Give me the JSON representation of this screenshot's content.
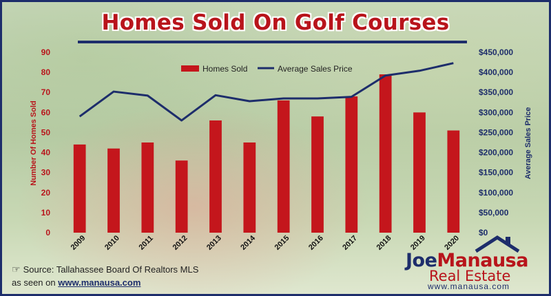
{
  "title": "Homes Sold On Golf Courses",
  "colors": {
    "bars": "#c4161c",
    "line": "#1d2d6b",
    "left_axis": "#b8141b",
    "right_axis": "#1d2d6b"
  },
  "chart_data": {
    "type": "bar",
    "title": "Homes Sold On Golf Courses",
    "categories": [
      "2009",
      "2010",
      "2011",
      "2012",
      "2013",
      "2014",
      "2015",
      "2016",
      "2017",
      "2018",
      "2019",
      "2020"
    ],
    "series": [
      {
        "name": "Homes Sold",
        "kind": "bar",
        "axis": "left",
        "values": [
          44,
          42,
          45,
          36,
          56,
          45,
          66,
          58,
          68,
          79,
          60,
          51
        ]
      },
      {
        "name": "Average Sales Price",
        "kind": "line",
        "axis": "right",
        "values": [
          290000,
          352000,
          342000,
          280000,
          343000,
          328000,
          335000,
          335000,
          339000,
          392000,
          404000,
          423000
        ]
      }
    ],
    "ylabel": "Number Of Homes Sold",
    "y2label": "Average Sales Price",
    "ylim": [
      0,
      90
    ],
    "y2lim": [
      0,
      450000
    ],
    "yticks": [
      "0",
      "10",
      "20",
      "30",
      "40",
      "50",
      "60",
      "70",
      "80",
      "90"
    ],
    "y2ticks": [
      "$0",
      "$50,000",
      "$100,000",
      "$150,000",
      "$200,000",
      "$250,000",
      "$300,000",
      "$350,000",
      "$400,000",
      "$450,000"
    ],
    "legend_position": "top-center",
    "grid": false
  },
  "footer": {
    "source": "Source: Tallahassee Board Of Realtors MLS",
    "seen_prefix": "as seen on",
    "seen_link": "www.manausa.com"
  },
  "logo": {
    "name_part1": "Joe",
    "name_part2": "Manausa",
    "subtitle": "Real Estate",
    "url": "www.manausa.com"
  }
}
